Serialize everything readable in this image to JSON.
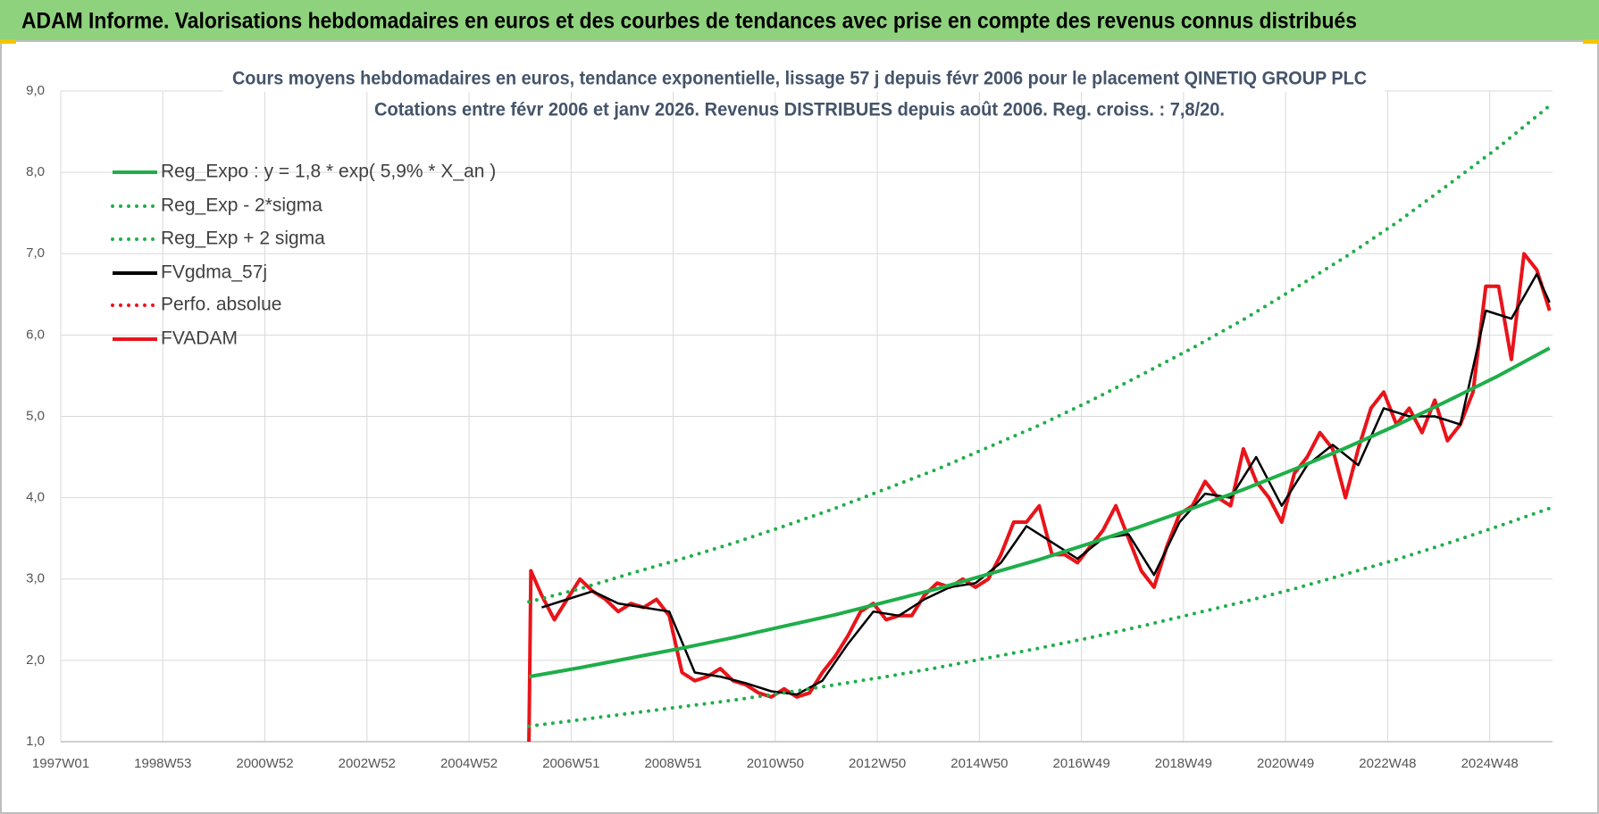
{
  "header": {
    "title": "ADAM Informe. Valorisations hebdomadaires en euros et des courbes de tendances avec prise en compte des revenus connus distribués"
  },
  "chart_data": {
    "type": "line",
    "title": "Cours moyens hebdomadaires en euros, tendance exponentielle, lissage 57 j depuis févr 2006 pour le placement QINETIQ GROUP PLC",
    "subtitle": "Cotations entre févr 2006 et janv 2026. Revenus DISTRIBUES depuis août 2006. Reg. croiss. : 7,8/20.",
    "xlim": [
      0,
      1520
    ],
    "xticks": [
      {
        "value": 0,
        "label": "1997W01"
      },
      {
        "value": 104,
        "label": "1998W53"
      },
      {
        "value": 208,
        "label": "2000W52"
      },
      {
        "value": 312,
        "label": "2002W52"
      },
      {
        "value": 416,
        "label": "2004W52"
      },
      {
        "value": 520,
        "label": "2006W51"
      },
      {
        "value": 624,
        "label": "2008W51"
      },
      {
        "value": 728,
        "label": "2010W50"
      },
      {
        "value": 832,
        "label": "2012W50"
      },
      {
        "value": 936,
        "label": "2014W50"
      },
      {
        "value": 1040,
        "label": "2016W49"
      },
      {
        "value": 1144,
        "label": "2018W49"
      },
      {
        "value": 1248,
        "label": "2020W49"
      },
      {
        "value": 1352,
        "label": "2022W48"
      },
      {
        "value": 1456,
        "label": "2024W48"
      }
    ],
    "ylim": [
      1,
      9
    ],
    "yticks": [
      {
        "value": 1,
        "label": "1,0"
      },
      {
        "value": 2,
        "label": "2,0"
      },
      {
        "value": 3,
        "label": "3,0"
      },
      {
        "value": 4,
        "label": "4,0"
      },
      {
        "value": 5,
        "label": "5,0"
      },
      {
        "value": 6,
        "label": "6,0"
      },
      {
        "value": 7,
        "label": "7,0"
      },
      {
        "value": 8,
        "label": "8,0"
      },
      {
        "value": 9,
        "label": "9,0"
      }
    ],
    "grid": true,
    "series": [
      {
        "name": "Reg_Expo : y = 1,8 * exp( 5,9% *  X_an )",
        "color": "#1fae4a",
        "style": "solid",
        "x": [
          477,
          529,
          581,
          633,
          685,
          737,
          789,
          841,
          893,
          945,
          997,
          1049,
          1101,
          1153,
          1205,
          1257,
          1309,
          1361,
          1413,
          1465,
          1517
        ],
        "values": [
          1.8,
          1.91,
          2.03,
          2.15,
          2.28,
          2.42,
          2.56,
          2.72,
          2.88,
          3.06,
          3.24,
          3.44,
          3.65,
          3.87,
          4.1,
          4.35,
          4.61,
          4.89,
          5.19,
          5.5,
          5.84
        ]
      },
      {
        "name": "Reg_Exp - 2*sigma",
        "color": "#1fae4a",
        "style": "dotted",
        "x": [
          477,
          529,
          581,
          633,
          685,
          737,
          789,
          841,
          893,
          945,
          997,
          1049,
          1101,
          1153,
          1205,
          1257,
          1309,
          1361,
          1413,
          1465,
          1517
        ],
        "values": [
          1.19,
          1.27,
          1.35,
          1.43,
          1.51,
          1.6,
          1.7,
          1.8,
          1.91,
          2.03,
          2.15,
          2.28,
          2.42,
          2.57,
          2.72,
          2.88,
          3.06,
          3.24,
          3.44,
          3.65,
          3.87
        ]
      },
      {
        "name": "Reg_Exp + 2 sigma",
        "color": "#1fae4a",
        "style": "dotted",
        "x": [
          477,
          529,
          581,
          633,
          685,
          737,
          789,
          841,
          893,
          945,
          997,
          1049,
          1101,
          1153,
          1205,
          1257,
          1309,
          1361,
          1413,
          1465,
          1517
        ],
        "values": [
          2.72,
          2.88,
          3.07,
          3.25,
          3.44,
          3.65,
          3.87,
          4.11,
          4.35,
          4.62,
          4.89,
          5.19,
          5.51,
          5.84,
          6.19,
          6.57,
          6.96,
          7.38,
          7.84,
          8.31,
          8.82
        ]
      },
      {
        "name": "FVgdma_57j",
        "color": "#000000",
        "style": "solid",
        "x": [
          490,
          516,
          542,
          568,
          594,
          620,
          646,
          672,
          698,
          724,
          750,
          776,
          802,
          828,
          854,
          880,
          906,
          932,
          958,
          984,
          1010,
          1036,
          1062,
          1088,
          1114,
          1140,
          1166,
          1192,
          1218,
          1244,
          1270,
          1296,
          1322,
          1348,
          1374,
          1400,
          1426,
          1452,
          1478,
          1504,
          1517
        ],
        "values": [
          2.65,
          2.75,
          2.85,
          2.7,
          2.65,
          2.6,
          1.85,
          1.8,
          1.72,
          1.62,
          1.58,
          1.75,
          2.2,
          2.6,
          2.55,
          2.75,
          2.9,
          2.95,
          3.2,
          3.65,
          3.45,
          3.25,
          3.5,
          3.55,
          3.05,
          3.7,
          4.05,
          4.0,
          4.5,
          3.9,
          4.4,
          4.65,
          4.4,
          5.1,
          5.0,
          5.0,
          4.9,
          6.3,
          6.2,
          6.75,
          6.4
        ]
      },
      {
        "name": "Perfo. absolue",
        "color": "#e8141a",
        "style": "dotted",
        "x": [
          479,
          490,
          503,
          516,
          529,
          542,
          555,
          568,
          581,
          594,
          607,
          620,
          633,
          646,
          659,
          672,
          685,
          698,
          711,
          724,
          737,
          750,
          763,
          776,
          789,
          802,
          815,
          828,
          841,
          854,
          867,
          880,
          893,
          906,
          919,
          932,
          945,
          958,
          971,
          984,
          997,
          1010,
          1023,
          1036,
          1049,
          1062,
          1075,
          1088,
          1101,
          1114,
          1127,
          1140,
          1153,
          1166,
          1179,
          1192,
          1205,
          1218,
          1231,
          1244,
          1257,
          1270,
          1283,
          1296,
          1309,
          1322,
          1335,
          1348,
          1361,
          1374,
          1387,
          1400,
          1413,
          1426,
          1439,
          1452,
          1465,
          1478,
          1491,
          1504,
          1517
        ],
        "values": [
          3.1,
          2.8,
          2.5,
          2.75,
          3.0,
          2.85,
          2.75,
          2.6,
          2.7,
          2.65,
          2.75,
          2.55,
          1.85,
          1.75,
          1.8,
          1.9,
          1.75,
          1.7,
          1.6,
          1.55,
          1.65,
          1.55,
          1.6,
          1.85,
          2.05,
          2.3,
          2.6,
          2.7,
          2.5,
          2.55,
          2.55,
          2.8,
          2.95,
          2.9,
          3.0,
          2.9,
          3.0,
          3.3,
          3.7,
          3.7,
          3.9,
          3.3,
          3.3,
          3.2,
          3.4,
          3.6,
          3.9,
          3.5,
          3.1,
          2.9,
          3.4,
          3.8,
          3.9,
          4.2,
          4.0,
          3.9,
          4.6,
          4.2,
          4.0,
          3.7,
          4.3,
          4.5,
          4.8,
          4.6,
          4.0,
          4.6,
          5.1,
          5.3,
          4.9,
          5.1,
          4.8,
          5.2,
          4.7,
          4.9,
          5.3,
          6.6,
          6.6,
          5.7,
          7.0,
          6.8,
          6.3
        ]
      },
      {
        "name": "FVADAM",
        "color": "#e8141a",
        "style": "solid",
        "x": [
          477,
          479,
          490,
          503,
          516,
          529,
          542,
          555,
          568,
          581,
          594,
          607,
          620,
          633,
          646,
          659,
          672,
          685,
          698,
          711,
          724,
          737,
          750,
          763,
          776,
          789,
          802,
          815,
          828,
          841,
          854,
          867,
          880,
          893,
          906,
          919,
          932,
          945,
          958,
          971,
          984,
          997,
          1010,
          1023,
          1036,
          1049,
          1062,
          1075,
          1088,
          1101,
          1114,
          1127,
          1140,
          1153,
          1166,
          1179,
          1192,
          1205,
          1218,
          1231,
          1244,
          1257,
          1270,
          1283,
          1296,
          1309,
          1322,
          1335,
          1348,
          1361,
          1374,
          1387,
          1400,
          1413,
          1426,
          1439,
          1452,
          1465,
          1478,
          1491,
          1504,
          1517
        ],
        "values": [
          1.0,
          3.1,
          2.8,
          2.5,
          2.75,
          3.0,
          2.85,
          2.75,
          2.6,
          2.7,
          2.65,
          2.75,
          2.55,
          1.85,
          1.75,
          1.8,
          1.9,
          1.75,
          1.7,
          1.6,
          1.55,
          1.65,
          1.55,
          1.6,
          1.85,
          2.05,
          2.3,
          2.6,
          2.7,
          2.5,
          2.55,
          2.55,
          2.8,
          2.95,
          2.9,
          3.0,
          2.9,
          3.0,
          3.3,
          3.7,
          3.7,
          3.9,
          3.3,
          3.3,
          3.2,
          3.4,
          3.6,
          3.9,
          3.5,
          3.1,
          2.9,
          3.4,
          3.8,
          3.9,
          4.2,
          4.0,
          3.9,
          4.6,
          4.2,
          4.0,
          3.7,
          4.3,
          4.5,
          4.8,
          4.6,
          4.0,
          4.6,
          5.1,
          5.3,
          4.9,
          5.1,
          4.8,
          5.2,
          4.7,
          4.9,
          5.3,
          6.6,
          6.6,
          5.7,
          7.0,
          6.8,
          6.3
        ]
      }
    ]
  }
}
